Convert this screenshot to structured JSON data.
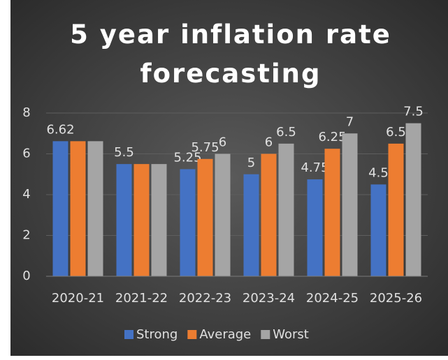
{
  "chart_data": {
    "type": "bar",
    "title": "5 year inflation rate forecasting",
    "categories": [
      "2020-21",
      "2021-22",
      "2022-23",
      "2023-24",
      "2024-25",
      "2025-26"
    ],
    "series": [
      {
        "name": "Strong",
        "color": "#4472c4",
        "values": [
          6.62,
          5.5,
          5.25,
          5,
          4.75,
          4.5
        ],
        "value_labels": [
          "6.62",
          "5.5",
          "5.25",
          "5",
          "4.75",
          "4.5"
        ]
      },
      {
        "name": "Average",
        "color": "#ed7d31",
        "values": [
          6.62,
          5.5,
          5.75,
          6,
          6.25,
          6.5
        ],
        "value_labels": [
          null,
          null,
          "5.75",
          "6",
          "6.25",
          "6.5"
        ]
      },
      {
        "name": "Worst",
        "color": "#a5a5a5",
        "values": [
          6.62,
          5.5,
          6,
          6.5,
          7,
          7.5
        ],
        "value_labels": [
          null,
          null,
          "6",
          "6.5",
          "7",
          "7.5"
        ]
      }
    ],
    "ylim": [
      0,
      8
    ],
    "yticks": [
      0,
      2,
      4,
      6,
      8
    ],
    "grid": true,
    "legend": "bottom"
  }
}
